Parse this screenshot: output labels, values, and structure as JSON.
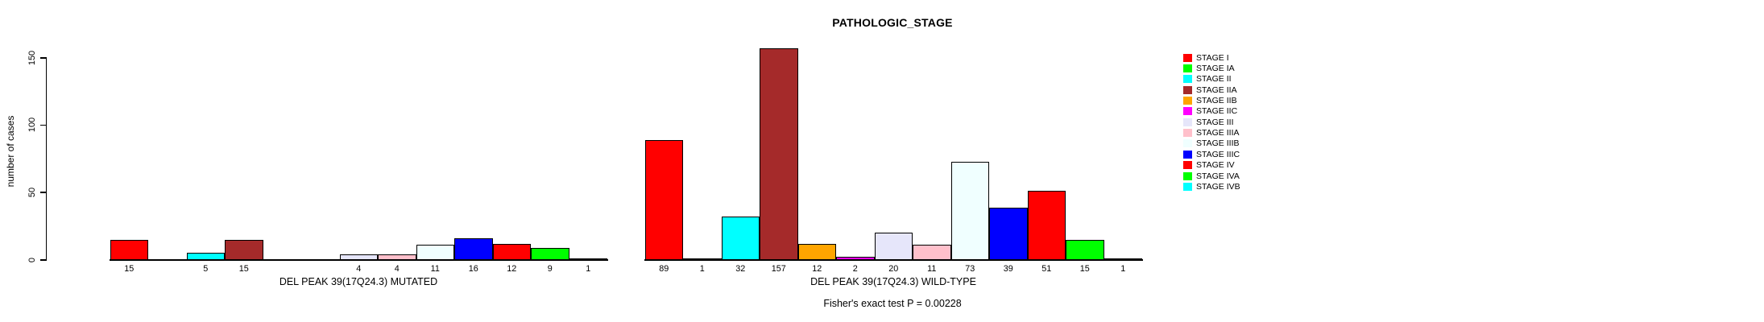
{
  "chart_data": {
    "type": "bar",
    "title": "PATHOLOGIC_STAGE",
    "subtitle": "Fisher's exact test P = 0.00228",
    "ylabel": "number of cases",
    "xlabel": "",
    "ylim": [
      0,
      150
    ],
    "yticks": [
      0,
      50,
      100,
      150
    ],
    "grid": false,
    "legend_position": "right-outside",
    "categories": [
      "STAGE I",
      "STAGE IA",
      "STAGE II",
      "STAGE IIA",
      "STAGE IIB",
      "STAGE IIC",
      "STAGE III",
      "STAGE IIIA",
      "STAGE IIIB",
      "STAGE IIIC",
      "STAGE IV",
      "STAGE IVA",
      "STAGE IVB"
    ],
    "colors": [
      "#FF0000",
      "#00FF00",
      "#00FFFF",
      "#A52A2A",
      "#FFA500",
      "#FF00FF",
      "#E6E6FA",
      "#FFC0CB",
      "#F0FFFF",
      "#0000FF",
      "#FF0000",
      "#00FF00",
      "#00FFFF"
    ],
    "series": [
      {
        "name": "DEL PEAK 39(17Q24.3) MUTATED",
        "values": [
          15,
          0,
          5,
          15,
          0,
          0,
          4,
          4,
          11,
          16,
          12,
          9,
          1
        ],
        "bar_labels": [
          "15",
          "",
          "5",
          "15",
          "",
          "",
          "4",
          "4",
          "11",
          "16",
          "12",
          "9",
          "1"
        ]
      },
      {
        "name": "DEL PEAK 39(17Q24.3) WILD-TYPE",
        "values": [
          89,
          1,
          32,
          157,
          12,
          2,
          20,
          11,
          73,
          39,
          51,
          15,
          1
        ],
        "bar_labels": [
          "89",
          "1",
          "32",
          "157",
          "12",
          "2",
          "20",
          "11",
          "73",
          "39",
          "51",
          "15",
          "1"
        ]
      }
    ]
  }
}
